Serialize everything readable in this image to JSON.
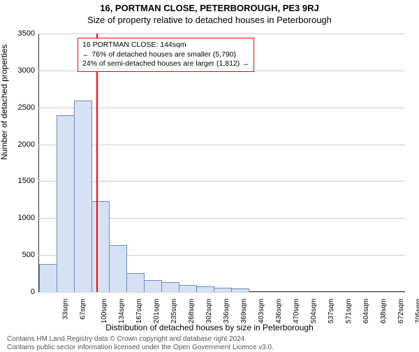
{
  "titles": {
    "main": "16, PORTMAN CLOSE, PETERBOROUGH, PE3 9RJ",
    "sub": "Size of property relative to detached houses in Peterborough"
  },
  "axes": {
    "ylabel": "Number of detached properties",
    "xlabel": "Distribution of detached houses by size in Peterborough"
  },
  "chart": {
    "type": "histogram",
    "background_color": "#ffffff",
    "grid_color": "#cccccc",
    "axis_color": "#333333",
    "bar_fill": "#d6e2f3",
    "bar_border": "#6a8bc0",
    "ylim_max": 3500,
    "ytick_step": 500,
    "categories": [
      "33sqm",
      "67sqm",
      "100sqm",
      "134sqm",
      "167sqm",
      "201sqm",
      "235sqm",
      "268sqm",
      "302sqm",
      "336sqm",
      "369sqm",
      "403sqm",
      "436sqm",
      "470sqm",
      "504sqm",
      "537sqm",
      "571sqm",
      "604sqm",
      "638sqm",
      "672sqm",
      "705sqm"
    ],
    "values": [
      370,
      2380,
      2580,
      1220,
      620,
      250,
      150,
      120,
      90,
      70,
      50,
      40,
      0,
      0,
      0,
      0,
      0,
      0,
      0,
      0,
      0
    ],
    "marker": {
      "color": "#ff0000",
      "category_index_after": 3,
      "fraction_between": 0.3
    },
    "annotation": {
      "border_color": "#ff0000",
      "line1": "16 PORTMAN CLOSE: 144sqm",
      "line2": "← 76% of detached houses are smaller (5,790)",
      "line3": "24% of semi-detached houses are larger (1,812) →"
    }
  },
  "footer": {
    "line1": "Contains HM Land Registry data © Crown copyright and database right 2024.",
    "line2": "Contains public sector information licensed under the Open Government Licence v3.0."
  }
}
